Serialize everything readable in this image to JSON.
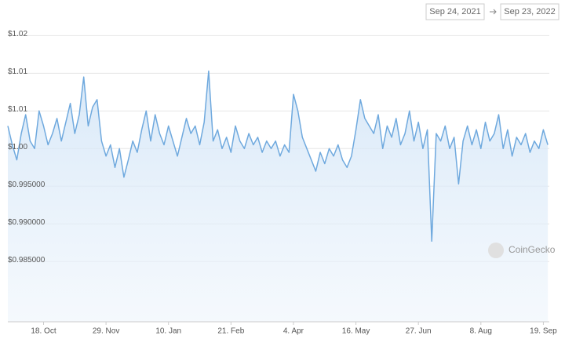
{
  "range_picker": {
    "from": "Sep 24, 2021",
    "to": "Sep 23, 2022"
  },
  "watermark": "CoinGecko",
  "chart_data": {
    "type": "line",
    "area": true,
    "grid": true,
    "color": "#6fa9de",
    "x": [
      0,
      3,
      6,
      9,
      12,
      15,
      18,
      21,
      24,
      27,
      30,
      33,
      36,
      39,
      42,
      45,
      48,
      51,
      54,
      57,
      60,
      63,
      66,
      69,
      72,
      75,
      78,
      81,
      84,
      87,
      90,
      93,
      96,
      99,
      102,
      105,
      108,
      111,
      114,
      117,
      120,
      123,
      126,
      129,
      132,
      135,
      138,
      141,
      144,
      147,
      150,
      153,
      156,
      159,
      162,
      165,
      168,
      171,
      174,
      177,
      180,
      183,
      186,
      189,
      192,
      195,
      198,
      201,
      204,
      207,
      210,
      213,
      216,
      219,
      222,
      225,
      228,
      231,
      234,
      237,
      240,
      243,
      246,
      249,
      252,
      255,
      258,
      261,
      264,
      267,
      270,
      273,
      276,
      279,
      282,
      285,
      288,
      291,
      294,
      297,
      300,
      303,
      306,
      309,
      312,
      315,
      318,
      321,
      324,
      327,
      330,
      333,
      336,
      339,
      342,
      345,
      348,
      351,
      354,
      357,
      360,
      363
    ],
    "values": [
      1.003,
      1.0005,
      0.9985,
      1.002,
      1.0045,
      1.001,
      1.0,
      1.005,
      1.003,
      1.0005,
      1.002,
      1.004,
      1.001,
      1.0035,
      1.006,
      1.002,
      1.0045,
      1.0095,
      1.003,
      1.0055,
      1.0065,
      1.001,
      0.999,
      1.0005,
      0.9975,
      1.0,
      0.9962,
      0.9985,
      1.001,
      0.9995,
      1.0025,
      1.005,
      1.001,
      1.0045,
      1.002,
      1.0005,
      1.003,
      1.001,
      0.999,
      1.0015,
      1.004,
      1.002,
      1.003,
      1.0005,
      1.0035,
      1.0103,
      1.001,
      1.0025,
      1.0,
      1.0015,
      0.9995,
      1.003,
      1.001,
      1.0,
      1.002,
      1.0005,
      1.0015,
      0.9995,
      1.001,
      1.0,
      1.001,
      0.999,
      1.0005,
      0.9995,
      1.0072,
      1.005,
      1.0015,
      1.0,
      0.9985,
      0.997,
      0.9995,
      0.998,
      1.0,
      0.999,
      1.0005,
      0.9985,
      0.9975,
      0.999,
      1.0025,
      1.0065,
      1.004,
      1.003,
      1.002,
      1.0045,
      1.0,
      1.003,
      1.0015,
      1.004,
      1.0005,
      1.002,
      1.005,
      1.001,
      1.0035,
      1.0,
      1.0025,
      0.9877,
      1.002,
      1.001,
      1.003,
      1.0,
      1.0015,
      0.9953,
      1.001,
      1.003,
      1.0005,
      1.0025,
      1.0,
      1.0035,
      1.001,
      1.002,
      1.0045,
      1.0,
      1.0025,
      0.999,
      1.0015,
      1.0005,
      1.002,
      0.9995,
      1.001,
      1.0,
      1.0025,
      1.0005
    ],
    "xlim": [
      0,
      364
    ],
    "xticks": [
      {
        "value": 24,
        "label": "18. Oct"
      },
      {
        "value": 66,
        "label": "29. Nov"
      },
      {
        "value": 108,
        "label": "10. Jan"
      },
      {
        "value": 150,
        "label": "21. Feb"
      },
      {
        "value": 192,
        "label": "4. Apr"
      },
      {
        "value": 234,
        "label": "16. May"
      },
      {
        "value": 276,
        "label": "27. Jun"
      },
      {
        "value": 318,
        "label": "8. Aug"
      },
      {
        "value": 360,
        "label": "19. Sep"
      }
    ],
    "ylim": [
      0.977,
      1.0166
    ],
    "yticks": [
      {
        "value": 1.015,
        "label": "$1.02"
      },
      {
        "value": 1.01,
        "label": "$1.01"
      },
      {
        "value": 1.005,
        "label": "$1.01"
      },
      {
        "value": 1.0,
        "label": "$1.00"
      },
      {
        "value": 0.995,
        "label": "$0.995000"
      },
      {
        "value": 0.99,
        "label": "$0.990000"
      },
      {
        "value": 0.985,
        "label": "$0.985000"
      }
    ]
  }
}
